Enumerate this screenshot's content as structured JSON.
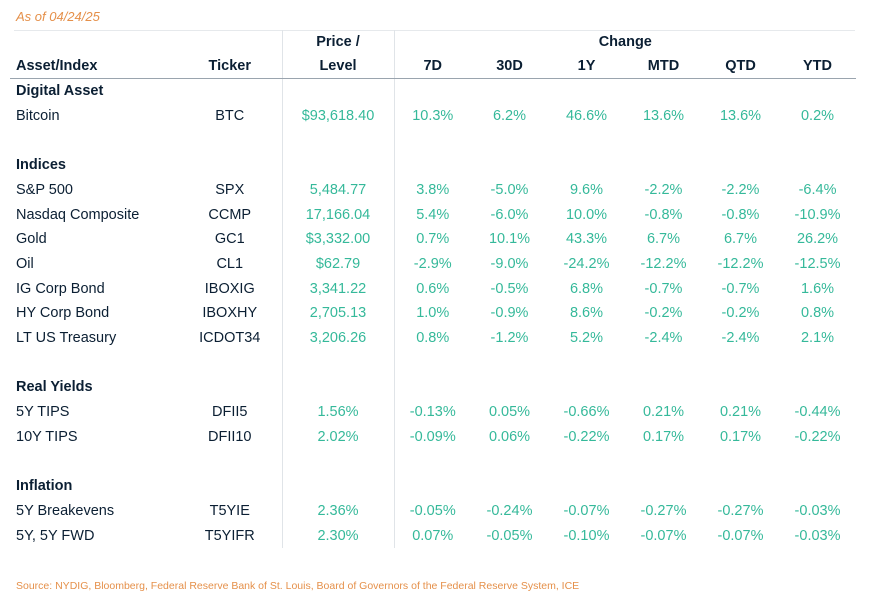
{
  "as_of": "As of 04/24/25",
  "header": {
    "asset": "Asset/Index",
    "ticker": "Ticker",
    "price_line1": "Price /",
    "price_line2": "Level",
    "change": "Change",
    "periods": [
      "7D",
      "30D",
      "1Y",
      "MTD",
      "QTD",
      "YTD"
    ]
  },
  "colors": {
    "accent": "#e5904a",
    "value": "#35b99a",
    "text": "#0b1f33"
  },
  "sections": [
    {
      "title": "Digital Asset",
      "rows": [
        {
          "name": "Bitcoin",
          "ticker": "BTC",
          "price": "$93,618.40",
          "changes": [
            "10.3%",
            "6.2%",
            "46.6%",
            "13.6%",
            "13.6%",
            "0.2%"
          ]
        }
      ]
    },
    {
      "title": "Indices",
      "rows": [
        {
          "name": "S&P 500",
          "ticker": "SPX",
          "price": "5,484.77",
          "changes": [
            "3.8%",
            "-5.0%",
            "9.6%",
            "-2.2%",
            "-2.2%",
            "-6.4%"
          ]
        },
        {
          "name": "Nasdaq Composite",
          "ticker": "CCMP",
          "price": "17,166.04",
          "changes": [
            "5.4%",
            "-6.0%",
            "10.0%",
            "-0.8%",
            "-0.8%",
            "-10.9%"
          ]
        },
        {
          "name": "Gold",
          "ticker": "GC1",
          "price": "$3,332.00",
          "changes": [
            "0.7%",
            "10.1%",
            "43.3%",
            "6.7%",
            "6.7%",
            "26.2%"
          ]
        },
        {
          "name": "Oil",
          "ticker": "CL1",
          "price": "$62.79",
          "changes": [
            "-2.9%",
            "-9.0%",
            "-24.2%",
            "-12.2%",
            "-12.2%",
            "-12.5%"
          ]
        },
        {
          "name": "IG Corp Bond",
          "ticker": "IBOXIG",
          "price": "3,341.22",
          "changes": [
            "0.6%",
            "-0.5%",
            "6.8%",
            "-0.7%",
            "-0.7%",
            "1.6%"
          ]
        },
        {
          "name": "HY Corp Bond",
          "ticker": "IBOXHY",
          "price": "2,705.13",
          "changes": [
            "1.0%",
            "-0.9%",
            "8.6%",
            "-0.2%",
            "-0.2%",
            "0.8%"
          ]
        },
        {
          "name": "LT US Treasury",
          "ticker": "ICDOT34",
          "price": "3,206.26",
          "changes": [
            "0.8%",
            "-1.2%",
            "5.2%",
            "-2.4%",
            "-2.4%",
            "2.1%"
          ]
        }
      ]
    },
    {
      "title": "Real Yields",
      "rows": [
        {
          "name": "5Y TIPS",
          "ticker": "DFII5",
          "price": "1.56%",
          "changes": [
            "-0.13%",
            "0.05%",
            "-0.66%",
            "0.21%",
            "0.21%",
            "-0.44%"
          ]
        },
        {
          "name": "10Y TIPS",
          "ticker": "DFII10",
          "price": "2.02%",
          "changes": [
            "-0.09%",
            "0.06%",
            "-0.22%",
            "0.17%",
            "0.17%",
            "-0.22%"
          ]
        }
      ]
    },
    {
      "title": "Inflation",
      "rows": [
        {
          "name": "5Y Breakevens",
          "ticker": "T5YIE",
          "price": "2.36%",
          "changes": [
            "-0.05%",
            "-0.24%",
            "-0.07%",
            "-0.27%",
            "-0.27%",
            "-0.03%"
          ]
        },
        {
          "name": "5Y, 5Y FWD",
          "ticker": "T5YIFR",
          "price": "2.30%",
          "changes": [
            "0.07%",
            "-0.05%",
            "-0.10%",
            "-0.07%",
            "-0.07%",
            "-0.03%"
          ]
        }
      ]
    }
  ],
  "source": "Source: NYDIG, Bloomberg, Federal Reserve Bank of St. Louis, Board of Governors of the Federal Reserve System, ICE"
}
